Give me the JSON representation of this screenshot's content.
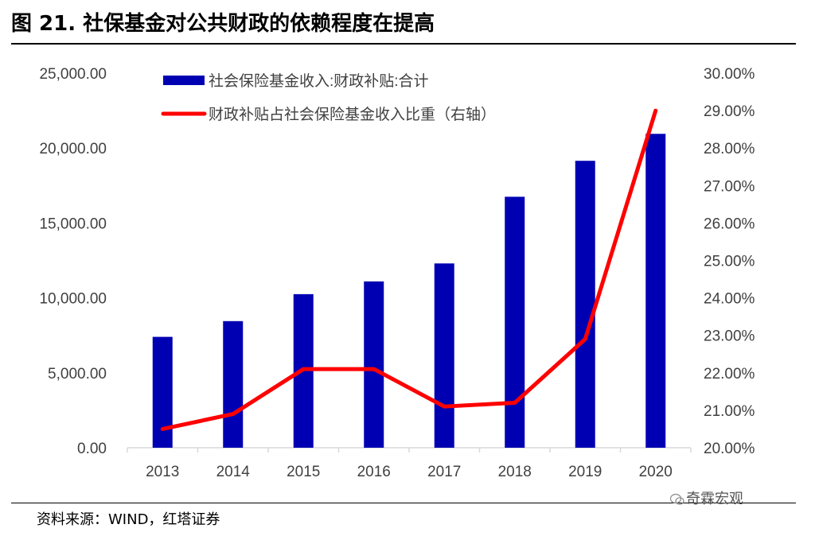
{
  "header": {
    "title": "图 21. 社保基金对公共财政的依赖程度在提高"
  },
  "footer": {
    "source": "资料来源：WIND，红塔证券",
    "watermark": "奇霖宏观"
  },
  "chart_data": {
    "type": "bar",
    "categories": [
      "2013",
      "2014",
      "2015",
      "2016",
      "2017",
      "2018",
      "2019",
      "2020"
    ],
    "series": [
      {
        "name": "社会保险基金收入:财政补贴:合计",
        "type": "bar",
        "axis": "left",
        "color": "#0000b3",
        "values": [
          7400,
          8450,
          10250,
          11100,
          12300,
          16750,
          19150,
          20950
        ]
      },
      {
        "name": "财政补贴占社会保险基金收入比重（右轴）",
        "type": "line",
        "axis": "right",
        "color": "#ff0000",
        "values": [
          20.5,
          20.9,
          22.1,
          22.1,
          21.1,
          21.2,
          22.9,
          29.0
        ]
      }
    ],
    "y_left": {
      "ylim": [
        0,
        25000
      ],
      "ticks": [
        "0.00",
        "5,000.00",
        "10,000.00",
        "15,000.00",
        "20,000.00",
        "25,000.00"
      ]
    },
    "y_right": {
      "ylim": [
        20,
        30
      ],
      "ticks": [
        "20.00%",
        "21.00%",
        "22.00%",
        "23.00%",
        "24.00%",
        "25.00%",
        "26.00%",
        "27.00%",
        "28.00%",
        "29.00%",
        "30.00%"
      ]
    },
    "legend": "top-left-inside",
    "grid": false
  }
}
